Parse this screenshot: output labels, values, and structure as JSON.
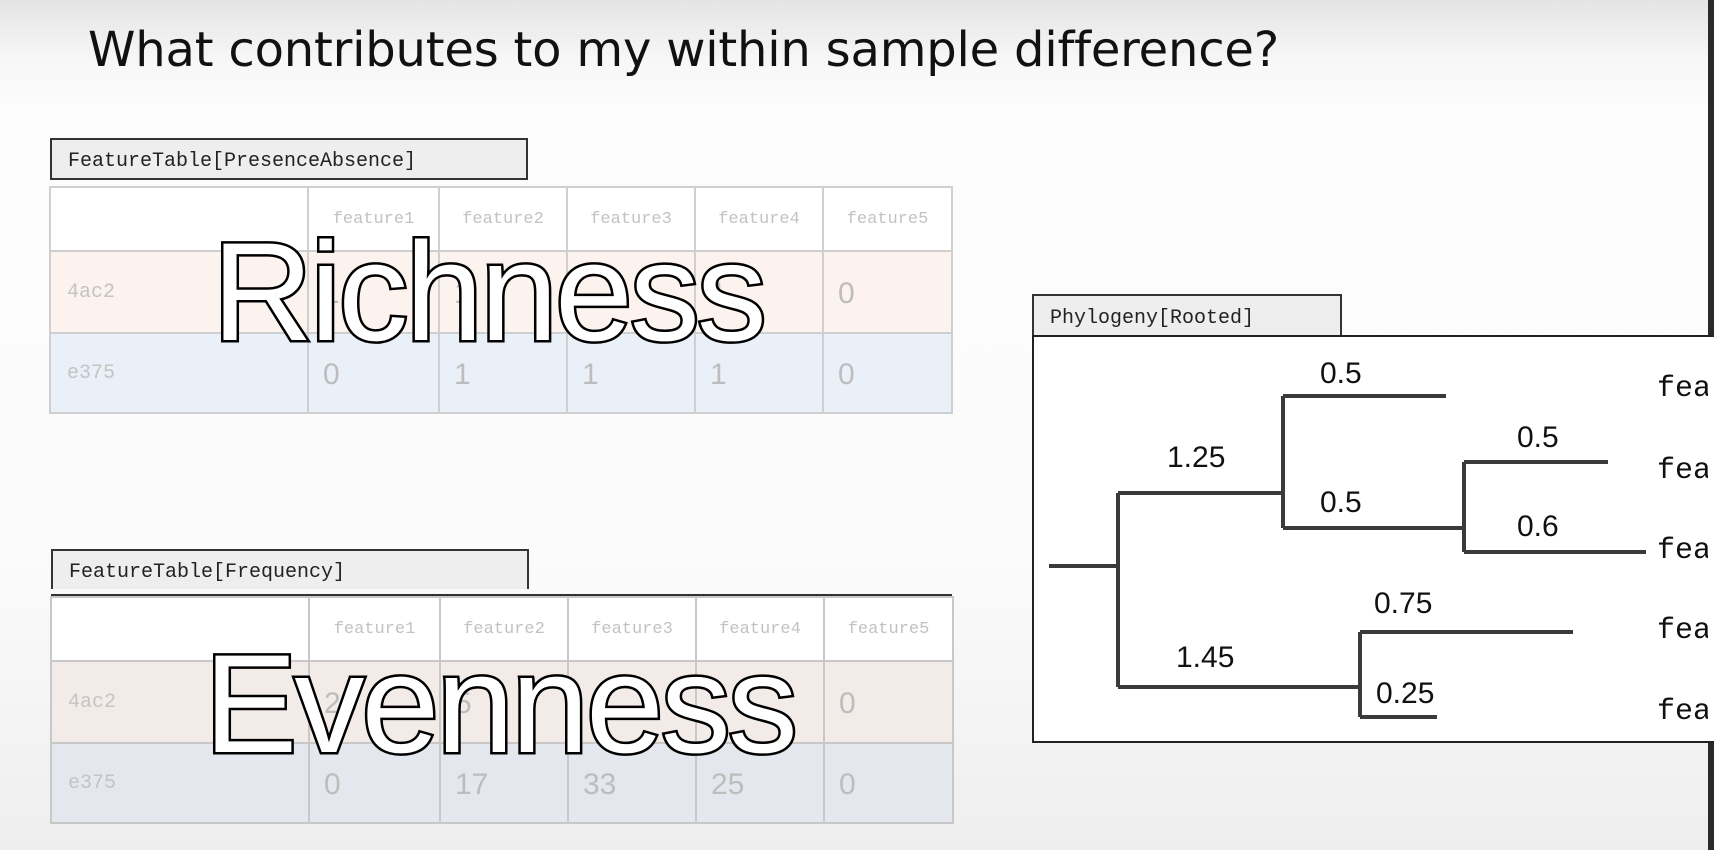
{
  "slide": {
    "title": "What contributes to my within sample difference?"
  },
  "presence_table": {
    "tab_label": "FeatureTable[PresenceAbsence]",
    "columns": [
      "feature1",
      "feature2",
      "feature3",
      "feature4",
      "feature5"
    ],
    "rows": [
      {
        "sample": "4ac2",
        "values": [
          "1",
          "1",
          "",
          "1",
          "0"
        ]
      },
      {
        "sample": "e375",
        "values": [
          "0",
          "1",
          "1",
          "1",
          "0"
        ]
      }
    ],
    "overlay_word": "Richness"
  },
  "frequency_table": {
    "tab_label": "FeatureTable[Frequency]",
    "columns": [
      "feature1",
      "feature2",
      "feature3",
      "feature4",
      "feature5"
    ],
    "rows": [
      {
        "sample": "4ac2",
        "values": [
          "25",
          "5",
          "",
          "",
          "0"
        ]
      },
      {
        "sample": "e375",
        "values": [
          "0",
          "17",
          "33",
          "25",
          "0"
        ]
      }
    ],
    "overlay_word": "Evenness"
  },
  "phylogeny": {
    "tab_label": "Phylogeny[Rooted]",
    "branch_lengths": {
      "upper_clade": "1.25",
      "lower_clade": "1.45",
      "tip_a": "0.5",
      "inner_node": "0.5",
      "tip_b": "0.5",
      "tip_c": "0.6",
      "tip_d": "0.75",
      "tip_e": "0.25"
    },
    "tip_labels": [
      "fea",
      "fea",
      "fea",
      "fea",
      "fea"
    ]
  },
  "colors": {
    "row_pink": "#fcf2ee",
    "row_blue": "#eaf0f8",
    "tree_line": "#3a3a3a"
  }
}
